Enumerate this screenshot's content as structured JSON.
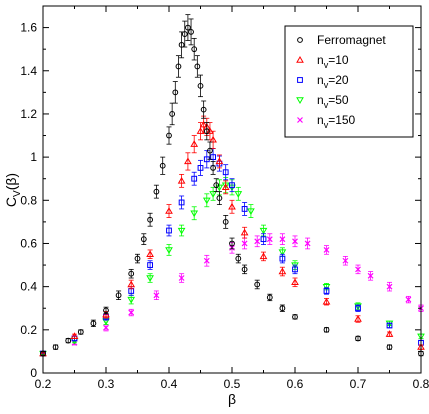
{
  "chart_data": {
    "type": "scatter",
    "title": "",
    "xlabel": "β",
    "ylabel": {
      "main": "C",
      "sub": "V",
      "suffix": "(β)"
    },
    "xlim": [
      0.2,
      0.8
    ],
    "ylim": [
      0,
      1.7
    ],
    "x_ticks": [
      "0.2",
      "0.3",
      "0.4",
      "0.5",
      "0.6",
      "0.7",
      "0.8"
    ],
    "y_ticks": [
      "0",
      "0.2",
      "0.4",
      "0.6",
      "0.8",
      "1",
      "1.2",
      "1.4",
      "1.6"
    ],
    "grid": false,
    "legend_position": "top-right",
    "error_bars": true,
    "series": [
      {
        "name": "Ferromagnet",
        "label_parts": {
          "main": "Ferromagnet",
          "sub": "",
          "rest": ""
        },
        "marker": "circle",
        "color": "#000000",
        "x": [
          0.2,
          0.22,
          0.24,
          0.26,
          0.28,
          0.3,
          0.32,
          0.34,
          0.35,
          0.36,
          0.37,
          0.38,
          0.39,
          0.4,
          0.405,
          0.41,
          0.415,
          0.42,
          0.425,
          0.43,
          0.435,
          0.44,
          0.445,
          0.45,
          0.455,
          0.46,
          0.465,
          0.47,
          0.475,
          0.48,
          0.49,
          0.5,
          0.51,
          0.52,
          0.54,
          0.56,
          0.58,
          0.6,
          0.65,
          0.7,
          0.75,
          0.8
        ],
        "y": [
          0.09,
          0.12,
          0.15,
          0.19,
          0.23,
          0.29,
          0.36,
          0.46,
          0.53,
          0.62,
          0.71,
          0.84,
          0.96,
          1.1,
          1.2,
          1.3,
          1.42,
          1.52,
          1.57,
          1.6,
          1.58,
          1.5,
          1.42,
          1.33,
          1.22,
          1.12,
          1.03,
          0.95,
          0.87,
          0.81,
          0.7,
          0.6,
          0.53,
          0.48,
          0.41,
          0.35,
          0.3,
          0.26,
          0.2,
          0.16,
          0.12,
          0.09
        ],
        "err": [
          0.01,
          0.01,
          0.01,
          0.01,
          0.015,
          0.015,
          0.02,
          0.02,
          0.02,
          0.025,
          0.03,
          0.03,
          0.04,
          0.04,
          0.05,
          0.05,
          0.05,
          0.06,
          0.06,
          0.06,
          0.06,
          0.05,
          0.05,
          0.05,
          0.04,
          0.04,
          0.04,
          0.03,
          0.03,
          0.03,
          0.03,
          0.025,
          0.02,
          0.02,
          0.02,
          0.015,
          0.015,
          0.01,
          0.01,
          0.01,
          0.01,
          0.01
        ]
      },
      {
        "name": "n_v=10",
        "label_parts": {
          "main": "n",
          "sub": "v",
          "rest": "=10"
        },
        "marker": "triangle-up",
        "color": "#ff0000",
        "x": [
          0.2,
          0.25,
          0.3,
          0.34,
          0.37,
          0.4,
          0.42,
          0.43,
          0.44,
          0.45,
          0.455,
          0.46,
          0.465,
          0.47,
          0.48,
          0.49,
          0.5,
          0.52,
          0.55,
          0.58,
          0.6,
          0.65,
          0.7,
          0.75,
          0.8
        ],
        "y": [
          0.09,
          0.17,
          0.27,
          0.41,
          0.55,
          0.75,
          0.89,
          0.98,
          1.06,
          1.12,
          1.15,
          1.14,
          1.12,
          1.08,
          0.98,
          0.86,
          0.77,
          0.65,
          0.54,
          0.47,
          0.42,
          0.33,
          0.25,
          0.18,
          0.12
        ],
        "err": [
          0.01,
          0.01,
          0.015,
          0.02,
          0.02,
          0.03,
          0.03,
          0.04,
          0.04,
          0.04,
          0.04,
          0.04,
          0.04,
          0.04,
          0.03,
          0.03,
          0.03,
          0.025,
          0.02,
          0.02,
          0.02,
          0.015,
          0.015,
          0.01,
          0.01
        ]
      },
      {
        "name": "n_v=20",
        "label_parts": {
          "main": "n",
          "sub": "v",
          "rest": "=20"
        },
        "marker": "square",
        "color": "#0000ff",
        "x": [
          0.2,
          0.25,
          0.3,
          0.34,
          0.37,
          0.4,
          0.42,
          0.44,
          0.45,
          0.46,
          0.47,
          0.48,
          0.49,
          0.5,
          0.52,
          0.55,
          0.58,
          0.6,
          0.65,
          0.7,
          0.75,
          0.8
        ],
        "y": [
          0.09,
          0.16,
          0.26,
          0.38,
          0.5,
          0.66,
          0.79,
          0.9,
          0.95,
          0.99,
          1.0,
          0.97,
          0.93,
          0.87,
          0.76,
          0.62,
          0.53,
          0.48,
          0.38,
          0.3,
          0.22,
          0.14
        ],
        "err": [
          0.01,
          0.01,
          0.015,
          0.02,
          0.02,
          0.025,
          0.03,
          0.03,
          0.035,
          0.04,
          0.04,
          0.035,
          0.035,
          0.03,
          0.03,
          0.025,
          0.02,
          0.02,
          0.015,
          0.015,
          0.01,
          0.01
        ]
      },
      {
        "name": "n_v=50",
        "label_parts": {
          "main": "n",
          "sub": "v",
          "rest": "=50"
        },
        "marker": "triangle-down",
        "color": "#00ff00",
        "x": [
          0.2,
          0.25,
          0.3,
          0.34,
          0.37,
          0.4,
          0.42,
          0.44,
          0.46,
          0.47,
          0.48,
          0.49,
          0.5,
          0.51,
          0.53,
          0.55,
          0.58,
          0.6,
          0.65,
          0.7,
          0.75,
          0.8
        ],
        "y": [
          0.09,
          0.15,
          0.24,
          0.34,
          0.44,
          0.57,
          0.66,
          0.74,
          0.8,
          0.83,
          0.86,
          0.87,
          0.86,
          0.83,
          0.75,
          0.66,
          0.56,
          0.5,
          0.4,
          0.31,
          0.23,
          0.17
        ],
        "err": [
          0.01,
          0.01,
          0.015,
          0.02,
          0.02,
          0.025,
          0.025,
          0.03,
          0.03,
          0.03,
          0.035,
          0.035,
          0.035,
          0.03,
          0.03,
          0.025,
          0.02,
          0.02,
          0.015,
          0.015,
          0.01,
          0.01
        ]
      },
      {
        "name": "n_v=150",
        "label_parts": {
          "main": "n",
          "sub": "v",
          "rest": "=150"
        },
        "marker": "cross",
        "color": "#ff00ff",
        "x": [
          0.2,
          0.25,
          0.3,
          0.34,
          0.38,
          0.42,
          0.46,
          0.5,
          0.52,
          0.54,
          0.56,
          0.58,
          0.6,
          0.62,
          0.65,
          0.68,
          0.7,
          0.72,
          0.75,
          0.78,
          0.8
        ],
        "y": [
          0.09,
          0.14,
          0.21,
          0.28,
          0.36,
          0.44,
          0.52,
          0.58,
          0.6,
          0.61,
          0.62,
          0.62,
          0.61,
          0.6,
          0.57,
          0.52,
          0.48,
          0.45,
          0.4,
          0.34,
          0.3
        ],
        "err": [
          0.01,
          0.01,
          0.015,
          0.015,
          0.02,
          0.02,
          0.025,
          0.025,
          0.025,
          0.025,
          0.025,
          0.025,
          0.025,
          0.025,
          0.02,
          0.02,
          0.02,
          0.02,
          0.02,
          0.015,
          0.015
        ]
      }
    ]
  }
}
